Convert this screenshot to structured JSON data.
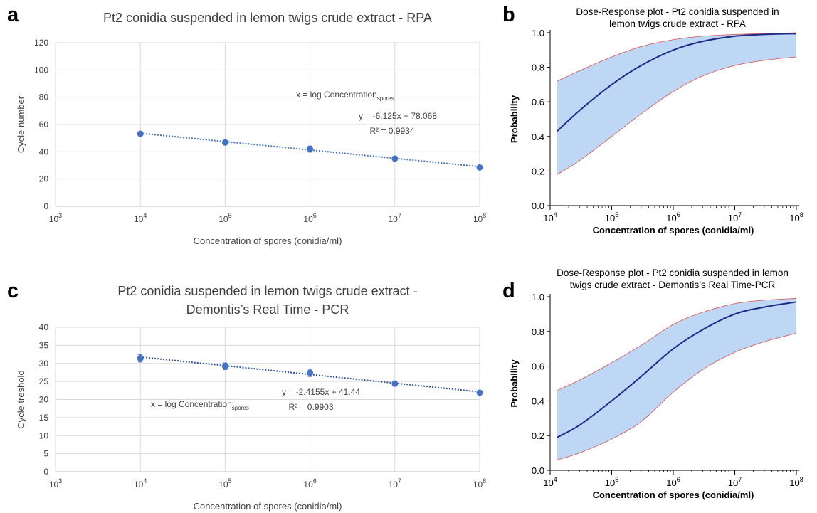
{
  "chart_data": [
    {
      "panel_label": "a",
      "type": "scatter",
      "title": "Pt2 conidia suspended in lemon twigs crude extract - RPA",
      "xlabel": "Concentration of spores (conidia/ml)",
      "ylabel": "Cycle number",
      "x_scale": "log",
      "x_ticks": [
        1000,
        10000,
        100000,
        1000000,
        10000000,
        100000000
      ],
      "x_tick_labels": [
        [
          "10",
          "3"
        ],
        [
          "10",
          "4"
        ],
        [
          "10",
          "5"
        ],
        [
          "10",
          "6"
        ],
        [
          "10",
          "7"
        ],
        [
          "10",
          "8"
        ]
      ],
      "ylim": [
        0,
        120
      ],
      "y_ticks": [
        0,
        20,
        40,
        60,
        80,
        100,
        120
      ],
      "grid": true,
      "points": [
        {
          "x": 10000,
          "y": 53.2,
          "err": 1.0
        },
        {
          "x": 100000,
          "y": 46.8,
          "err": 1.2
        },
        {
          "x": 1000000,
          "y": 42.0,
          "err": 2.2
        },
        {
          "x": 10000000,
          "y": 35.0,
          "err": 1.0
        },
        {
          "x": 100000000,
          "y": 28.5,
          "err": 0.8
        }
      ],
      "trendline": {
        "slope": -6.125,
        "intercept": 78.068,
        "x_from": 10000,
        "x_to": 100000000
      },
      "annotations": {
        "x_def_main": "x = log Concentration",
        "x_def_sub": "spores",
        "equation": "y = -6.125x + 78.068",
        "r2": "R² = 0.9934"
      },
      "colors": {
        "marker": "#4472c4",
        "trend": "#4472c4",
        "grid": "#d9d9d9"
      }
    },
    {
      "panel_label": "b",
      "type": "area",
      "title": [
        "Dose-Response plot - Pt2 conidia suspended in",
        "lemon twigs crude extract - RPA"
      ],
      "xlabel": "Concentration of spores (conidia/ml)",
      "ylabel": "Probability",
      "x_scale": "log",
      "xlim": [
        10000,
        100000000
      ],
      "x_ticks": [
        10000,
        100000,
        1000000,
        10000000,
        100000000
      ],
      "x_tick_labels": [
        [
          "10",
          "4"
        ],
        [
          "10",
          "5"
        ],
        [
          "10",
          "6"
        ],
        [
          "10",
          "7"
        ],
        [
          "10",
          "8"
        ]
      ],
      "ylim": [
        0,
        1
      ],
      "y_ticks": [
        0.0,
        0.2,
        0.4,
        0.6,
        0.8,
        1.0
      ],
      "y_tick_labels": [
        "0.0",
        "0.2",
        "0.4",
        "0.6",
        "0.8",
        "1.0"
      ],
      "grid": false,
      "x": [
        13000,
        30000,
        100000,
        300000,
        1000000,
        3000000,
        10000000,
        30000000,
        100000000
      ],
      "series": [
        {
          "role": "fit",
          "values": [
            0.43,
            0.55,
            0.7,
            0.81,
            0.9,
            0.95,
            0.98,
            0.99,
            0.995
          ]
        },
        {
          "role": "upper",
          "values": [
            0.72,
            0.78,
            0.86,
            0.92,
            0.96,
            0.98,
            0.99,
            0.995,
            1.0
          ]
        },
        {
          "role": "lower",
          "values": [
            0.18,
            0.26,
            0.4,
            0.53,
            0.66,
            0.75,
            0.81,
            0.84,
            0.86
          ]
        }
      ],
      "colors": {
        "fit": "#1f2a8a",
        "band": "#bed7f4",
        "bound": "#d45050"
      }
    },
    {
      "panel_label": "c",
      "type": "scatter",
      "title": [
        "Pt2 conidia suspended in lemon twigs crude extract -",
        "Demontis’s Real Time - PCR"
      ],
      "xlabel": "Concentration of spores (conidia/ml)",
      "ylabel": "Cycle treshold",
      "x_scale": "log",
      "x_ticks": [
        1000,
        10000,
        100000,
        1000000,
        10000000,
        100000000
      ],
      "x_tick_labels": [
        [
          "10",
          "3"
        ],
        [
          "10",
          "4"
        ],
        [
          "10",
          "5"
        ],
        [
          "10",
          "6"
        ],
        [
          "10",
          "7"
        ],
        [
          "10",
          "8"
        ]
      ],
      "ylim": [
        0,
        40
      ],
      "y_ticks": [
        0,
        5,
        10,
        15,
        20,
        25,
        30,
        35,
        40
      ],
      "grid": true,
      "points": [
        {
          "x": 10000,
          "y": 31.4,
          "err": 1.0
        },
        {
          "x": 100000,
          "y": 29.2,
          "err": 0.9
        },
        {
          "x": 1000000,
          "y": 27.4,
          "err": 1.0
        },
        {
          "x": 10000000,
          "y": 24.4,
          "err": 0.7
        },
        {
          "x": 100000000,
          "y": 21.9,
          "err": 0.5
        }
      ],
      "trendline": {
        "slope": -2.4155,
        "intercept": 41.44,
        "x_from": 10000,
        "x_to": 100000000
      },
      "annotations": {
        "x_def_main": "x = log Concentration",
        "x_def_sub": "spores",
        "equation": "y = -2.4155x + 41.44",
        "r2": "R² = 0.9903"
      },
      "colors": {
        "marker": "#4472c4",
        "trend": "#2f4f9f",
        "grid": "#d9d9d9"
      }
    },
    {
      "panel_label": "d",
      "type": "area",
      "title": [
        "Dose-Response plot - Pt2 conidia suspended in lemon",
        "twigs crude extract - Demontis’s Real Time-PCR"
      ],
      "xlabel": "Concentration of spores (conidia/ml)",
      "ylabel": "Probability",
      "x_scale": "log",
      "xlim": [
        10000,
        100000000
      ],
      "x_ticks": [
        10000,
        100000,
        1000000,
        10000000,
        100000000
      ],
      "x_tick_labels": [
        [
          "10",
          "4"
        ],
        [
          "10",
          "5"
        ],
        [
          "10",
          "6"
        ],
        [
          "10",
          "7"
        ],
        [
          "10",
          "8"
        ]
      ],
      "ylim": [
        0,
        1
      ],
      "y_ticks": [
        0.0,
        0.2,
        0.4,
        0.6,
        0.8,
        1.0
      ],
      "y_tick_labels": [
        "0.0",
        "0.2",
        "0.4",
        "0.6",
        "0.8",
        "1.0"
      ],
      "grid": false,
      "x": [
        13000,
        30000,
        100000,
        300000,
        1000000,
        3000000,
        10000000,
        30000000,
        100000000
      ],
      "series": [
        {
          "role": "fit",
          "values": [
            0.19,
            0.26,
            0.4,
            0.54,
            0.7,
            0.81,
            0.9,
            0.94,
            0.97
          ]
        },
        {
          "role": "upper",
          "values": [
            0.46,
            0.52,
            0.62,
            0.72,
            0.84,
            0.91,
            0.96,
            0.98,
            0.99
          ]
        },
        {
          "role": "lower",
          "values": [
            0.06,
            0.1,
            0.18,
            0.28,
            0.45,
            0.58,
            0.68,
            0.74,
            0.79
          ]
        }
      ],
      "colors": {
        "fit": "#1f2a8a",
        "band": "#bed7f4",
        "bound": "#d45050"
      }
    }
  ]
}
